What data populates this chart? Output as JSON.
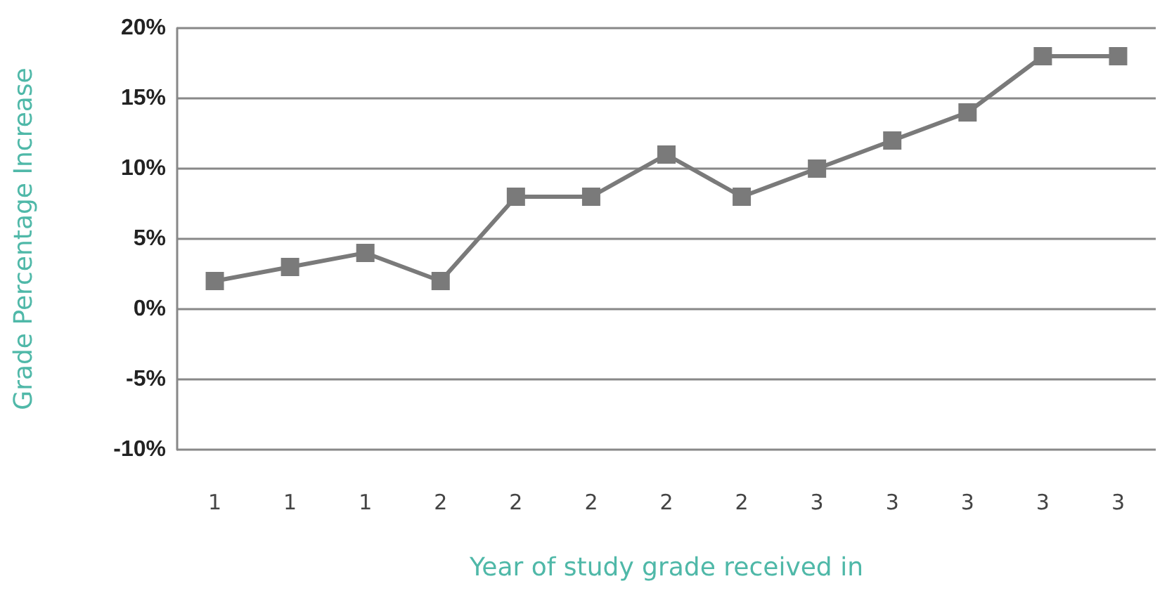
{
  "chart_data": {
    "type": "line",
    "xlabel": "Year of study grade received in",
    "ylabel": "Grade Percentage Increase",
    "categories": [
      "1",
      "1",
      "1",
      "2",
      "2",
      "2",
      "2",
      "2",
      "3",
      "3",
      "3",
      "3",
      "3"
    ],
    "series": [
      {
        "color": "#7a7a7a",
        "values": [
          2,
          3,
          4,
          2,
          8,
          8,
          11,
          8,
          10,
          12,
          14,
          18,
          18
        ]
      }
    ],
    "ylim": [
      -10,
      20
    ],
    "yticks": [
      {
        "value": -10,
        "label": "-10%"
      },
      {
        "value": -5,
        "label": "-5%"
      },
      {
        "value": 0,
        "label": "0%"
      },
      {
        "value": 5,
        "label": "5%"
      },
      {
        "value": 10,
        "label": "10%"
      },
      {
        "value": 15,
        "label": "15%"
      },
      {
        "value": 20,
        "label": "20%"
      }
    ],
    "grid": "y",
    "marker": "square",
    "line_style": "solid"
  }
}
